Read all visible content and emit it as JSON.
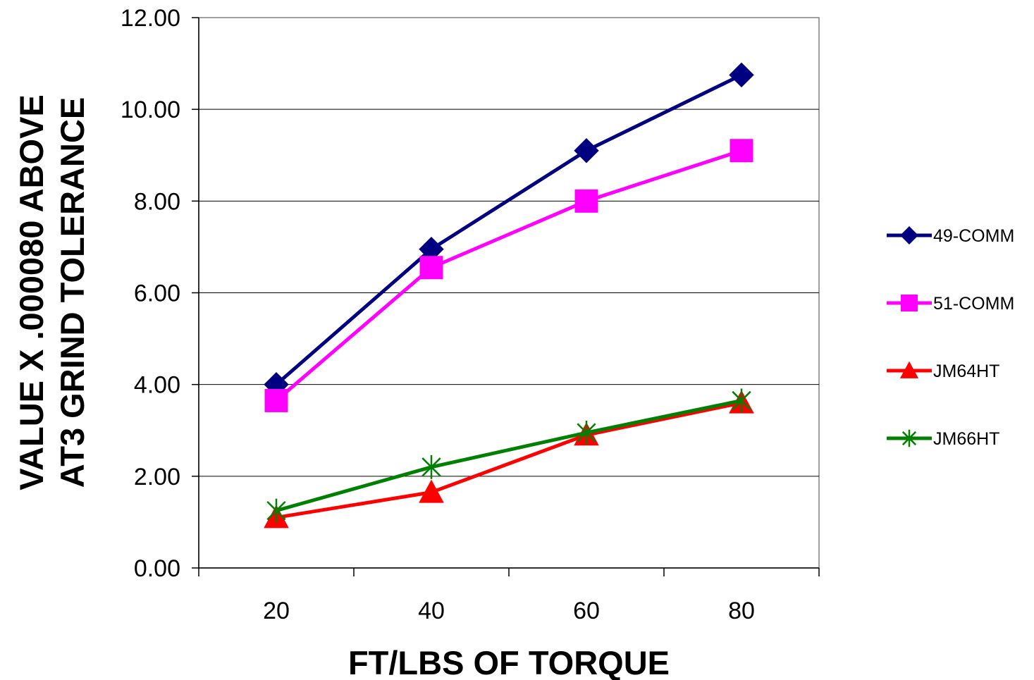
{
  "chart_data": {
    "type": "line",
    "x": [
      20,
      40,
      60,
      80
    ],
    "xlabel": "FT/LBS OF TORQUE",
    "ylabel_lines": [
      "VALUE X .000080 ABOVE",
      "AT3 GRIND TOLERANCE"
    ],
    "ylim": [
      0,
      12
    ],
    "yticks": [
      "0.00",
      "2.00",
      "4.00",
      "6.00",
      "8.00",
      "10.00",
      "12.00"
    ],
    "xticks": [
      "20",
      "40",
      "60",
      "80"
    ],
    "grid": "horizontal",
    "legend_position": "right",
    "series": [
      {
        "name": "49-COMM",
        "values": [
          4.0,
          6.95,
          9.1,
          10.75
        ],
        "color": "#000080",
        "marker": "diamond"
      },
      {
        "name": "51-COMM",
        "values": [
          3.65,
          6.55,
          8.0,
          9.1
        ],
        "color": "#ff00ff",
        "marker": "square"
      },
      {
        "name": "JM64HT",
        "values": [
          1.1,
          1.65,
          2.9,
          3.6
        ],
        "color": "#ff0000",
        "marker": "triangle"
      },
      {
        "name": "JM66HT",
        "values": [
          1.25,
          2.2,
          2.95,
          3.65
        ],
        "color": "#008000",
        "marker": "asterisk"
      }
    ]
  }
}
